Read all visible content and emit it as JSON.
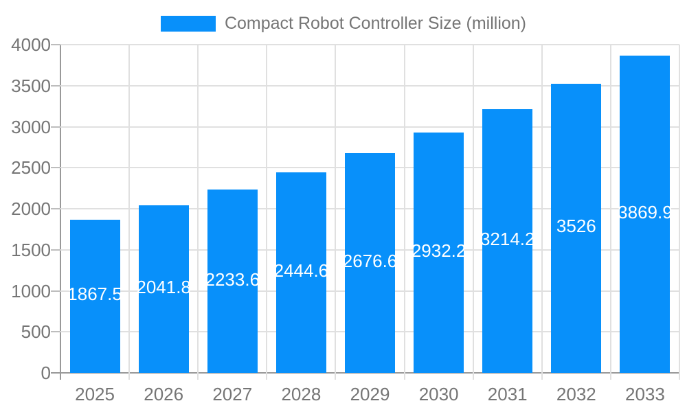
{
  "legend": {
    "label": "Compact Robot Controller Size (million)"
  },
  "chart_data": {
    "type": "bar",
    "title": "",
    "legend_entries": [
      "Compact Robot Controller Size (million)"
    ],
    "legend_position": "top",
    "categories": [
      "2025",
      "2026",
      "2027",
      "2028",
      "2029",
      "2030",
      "2031",
      "2032",
      "2033"
    ],
    "series": [
      {
        "name": "Compact Robot Controller Size (million)",
        "values": [
          1867.5,
          2041.8,
          2233.6,
          2444.6,
          2676.6,
          2932.2,
          3214.2,
          3526,
          3869.9
        ],
        "value_labels": [
          "1867.5",
          "2041.8",
          "2233.6",
          "2444.6",
          "2676.6",
          "2932.2",
          "3214.2",
          "3526",
          "3869.9"
        ]
      }
    ],
    "xlabel": "",
    "ylabel": "",
    "ylim": [
      0,
      4000
    ],
    "yticks": [
      "0",
      "500",
      "1000",
      "1500",
      "2000",
      "2500",
      "3000",
      "3500",
      "4000"
    ],
    "grid": "on",
    "colors": {
      "bar": "#0890fa",
      "grid": "#e0e0e0",
      "axis": "#999999",
      "tick": "#bdbdbd",
      "axis_text": "#757575",
      "value_label_text": "#ffffff",
      "background": "#ffffff"
    }
  }
}
